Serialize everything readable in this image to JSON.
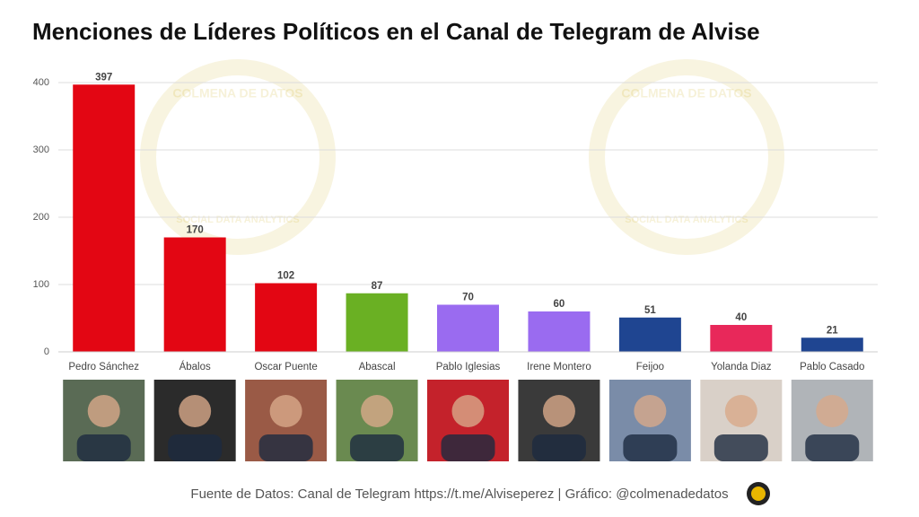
{
  "chart_data": {
    "type": "bar",
    "title": "Menciones de Líderes Políticos en el Canal de Telegram de Alvise",
    "categories": [
      "Pedro Sánchez",
      "Ábalos",
      "Oscar Puente",
      "Abascal",
      "Pablo Iglesias",
      "Irene Montero",
      "Feijoo",
      "Yolanda Diaz",
      "Pablo Casado"
    ],
    "values": [
      397,
      170,
      102,
      87,
      70,
      60,
      51,
      40,
      21
    ],
    "colors": [
      "#e30613",
      "#e30613",
      "#e30613",
      "#6ab023",
      "#9a6bf0",
      "#9a6bf0",
      "#1f4591",
      "#e8285a",
      "#1f4591"
    ],
    "ylim": [
      0,
      400
    ],
    "yticks": [
      0,
      100,
      200,
      300,
      400
    ],
    "grid": true,
    "watermark": {
      "top": "COLMENA DE DATOS",
      "bottom": "SOCIAL DATA ANALYTICS"
    },
    "footer": "Fuente de Datos: Canal de Telegram  https://t.me/Alviseperez | Gráfico: @colmenadedatos"
  }
}
